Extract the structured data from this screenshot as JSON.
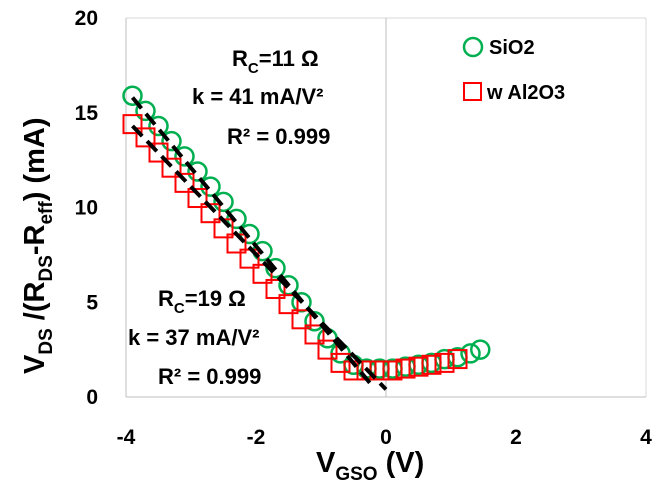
{
  "chart_data": {
    "type": "scatter",
    "xlim": [
      -4,
      4
    ],
    "ylim": [
      0,
      20
    ],
    "x_ticks": [
      "-4",
      "-2",
      "0",
      "2",
      "4"
    ],
    "y_ticks": [
      "0",
      "5",
      "10",
      "15",
      "20"
    ],
    "grid": "x=0 and y=20 gridlines only",
    "legend_position": "top-right",
    "xlabel": {
      "main": "V",
      "sub": "GSO",
      "rest": " (V)"
    },
    "ylabel": {
      "parts": [
        {
          "t": "V",
          "sub": false
        },
        {
          "t": "DS",
          "sub": true
        },
        {
          "t": " /(R",
          "sub": false
        },
        {
          "t": "DS",
          "sub": true
        },
        {
          "t": "-R",
          "sub": false
        },
        {
          "t": "eff",
          "sub": true
        },
        {
          "t": ") (mA)",
          "sub": false
        }
      ]
    },
    "annotations": {
      "sio2": {
        "rc_pre": "R",
        "rc_sub": "C",
        "rc_post": "=11 Ω",
        "k": "k = 41 mA/V²",
        "r2": "R² = 0.999"
      },
      "al2o3": {
        "rc_pre": "R",
        "rc_sub": "C",
        "rc_post": "=19 Ω",
        "k": "k = 37 mA/V²",
        "r2": "R² = 0.999"
      }
    },
    "series": [
      {
        "name": "SiO2",
        "marker": "circle",
        "color": "#00B050",
        "x": [
          -3.9,
          -3.7,
          -3.5,
          -3.3,
          -3.1,
          -2.9,
          -2.7,
          -2.5,
          -2.3,
          -2.1,
          -1.9,
          -1.7,
          -1.5,
          -1.3,
          -1.1,
          -0.9,
          -0.7,
          -0.5,
          -0.3,
          -0.1,
          0.1,
          0.3,
          0.5,
          0.7,
          0.9,
          1.1,
          1.3,
          1.45
        ],
        "y": [
          15.9,
          15.1,
          14.3,
          13.5,
          12.7,
          11.9,
          11.1,
          10.3,
          9.4,
          8.6,
          7.7,
          6.8,
          5.9,
          5.0,
          4.0,
          3.1,
          2.3,
          1.7,
          1.5,
          1.5,
          1.5,
          1.6,
          1.7,
          1.8,
          2.0,
          2.1,
          2.3,
          2.5
        ]
      },
      {
        "name": "w Al2O3",
        "marker": "square",
        "color": "#FF0000",
        "x": [
          -3.9,
          -3.7,
          -3.5,
          -3.3,
          -3.1,
          -2.9,
          -2.7,
          -2.5,
          -2.3,
          -2.1,
          -1.9,
          -1.7,
          -1.5,
          -1.3,
          -1.1,
          -0.9,
          -0.7,
          -0.5,
          -0.3,
          -0.1,
          0.1,
          0.3,
          0.5,
          0.7,
          0.9,
          1.1
        ],
        "y": [
          14.4,
          13.7,
          12.9,
          12.1,
          11.3,
          10.5,
          9.7,
          8.9,
          8.1,
          7.3,
          6.5,
          5.7,
          4.9,
          4.1,
          3.3,
          2.5,
          1.8,
          1.4,
          1.4,
          1.4,
          1.4,
          1.5,
          1.6,
          1.7,
          1.8,
          2.0
        ]
      }
    ],
    "fits": [
      {
        "series": "SiO2",
        "x": [
          -3.9,
          -0.25
        ],
        "y": [
          15.8,
          0.75
        ]
      },
      {
        "series": "w Al2O3",
        "x": [
          -3.9,
          0.0
        ],
        "y": [
          14.3,
          0.4
        ]
      }
    ]
  }
}
